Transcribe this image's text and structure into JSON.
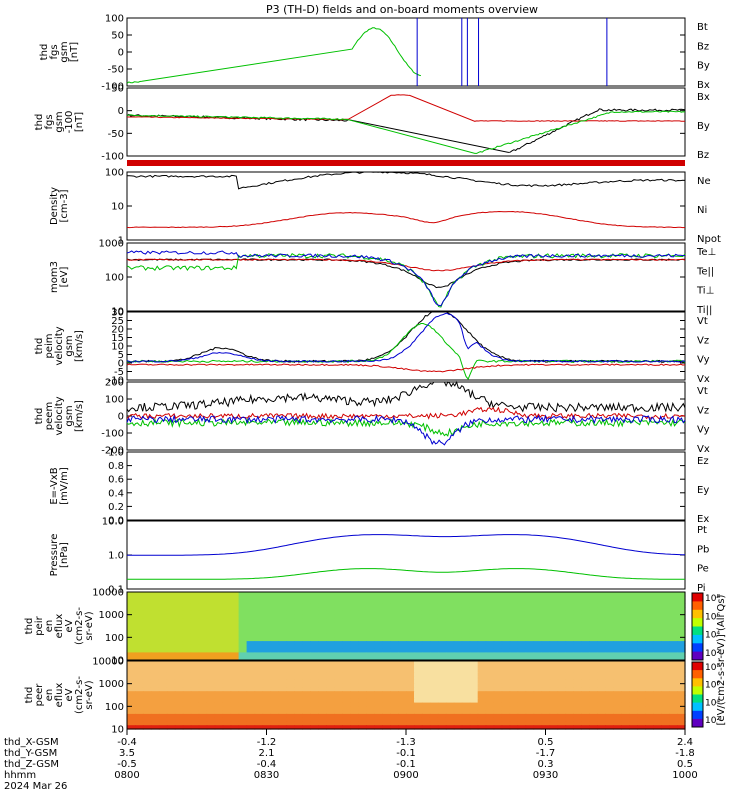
{
  "title": "P3 (TH-D) fields and on-board moments overview",
  "colors": {
    "black": "#000000",
    "red": "#d00000",
    "green": "#00c000",
    "blue": "#0000d0"
  },
  "chart_data": [
    {
      "type": "line",
      "ylabel": [
        "thd",
        "fgs",
        "gsm",
        "[nT]"
      ],
      "yticks": [
        "100",
        "50",
        "0",
        "-50",
        "-100"
      ],
      "ylim": [
        -100,
        100
      ],
      "legend": [
        {
          "name": "Bt",
          "color": "black"
        },
        {
          "name": "Bz",
          "color": "red"
        },
        {
          "name": "By",
          "color": "green"
        },
        {
          "name": "Bx",
          "color": "blue"
        }
      ]
    },
    {
      "type": "line",
      "ylabel": [
        "thd",
        "fgs",
        "gsm",
        "-100",
        "[nT]"
      ],
      "yticks": [
        "50",
        "0",
        "-50",
        "-100"
      ],
      "ylim": [
        -125,
        75
      ],
      "legend": [
        {
          "name": "Bx",
          "color": "black"
        },
        {
          "name": "By",
          "color": "green"
        },
        {
          "name": "Bz",
          "color": "red"
        }
      ]
    },
    {
      "type": "line",
      "scale": "log",
      "ylabel": [
        "Density",
        "[cm-3]"
      ],
      "yticks": [
        "100",
        "10",
        "1"
      ],
      "ylim": [
        0.7,
        110
      ],
      "legend": [
        {
          "name": "Ne",
          "color": "red"
        },
        {
          "name": "Ni",
          "color": "black"
        },
        {
          "name": "Npot",
          "color": "blue"
        }
      ]
    },
    {
      "type": "line",
      "scale": "log",
      "ylabel": [
        "mom3",
        "[eV]"
      ],
      "yticks": [
        "1000",
        "100",
        "10"
      ],
      "ylim": [
        7,
        2000
      ],
      "legend": [
        {
          "name": "Te⊥",
          "color": "red"
        },
        {
          "name": "Te||",
          "color": "black"
        },
        {
          "name": "Ti⊥",
          "color": "blue"
        },
        {
          "name": "Ti||",
          "color": "green"
        }
      ]
    },
    {
      "type": "line",
      "ylabel": [
        "thd",
        "peim",
        "velocity",
        "gsm",
        "[km/s]"
      ],
      "yticks": [
        "30",
        "25",
        "20",
        "15",
        "10",
        "5",
        "0",
        "-5",
        "-10"
      ],
      "ylim": [
        -10,
        30
      ],
      "legend": [
        {
          "name": "Vt",
          "color": "black"
        },
        {
          "name": "Vz",
          "color": "red"
        },
        {
          "name": "Vy",
          "color": "green"
        },
        {
          "name": "Vx",
          "color": "blue"
        }
      ]
    },
    {
      "type": "line",
      "ylabel": [
        "thd",
        "peem",
        "velocity",
        "gsm",
        "[km/s]"
      ],
      "yticks": [
        "200",
        "100",
        "0",
        "-100",
        "-200"
      ],
      "ylim": [
        -200,
        200
      ],
      "legend": [
        {
          "name": "Vt",
          "color": "black"
        },
        {
          "name": "Vz",
          "color": "red"
        },
        {
          "name": "Vy",
          "color": "green"
        },
        {
          "name": "Vx",
          "color": "blue"
        }
      ]
    },
    {
      "type": "line",
      "ylabel": [
        "E=-VxB",
        "[mV/m]"
      ],
      "yticks": [
        "1.0",
        "0.8",
        "0.6",
        "0.4",
        "0.2",
        "0.0"
      ],
      "ylim": [
        0,
        1
      ],
      "legend": [
        {
          "name": "Ez",
          "color": "red"
        },
        {
          "name": "Ey",
          "color": "green"
        },
        {
          "name": "Ex",
          "color": "blue"
        }
      ]
    },
    {
      "type": "line",
      "scale": "log",
      "ylabel": [
        "Pressure",
        "[nPa]"
      ],
      "yticks": [
        "10.0",
        "1.0",
        "0.1"
      ],
      "ylim": [
        0.07,
        15
      ],
      "legend": [
        {
          "name": "Pt",
          "color": "black"
        },
        {
          "name": "Pb",
          "color": "red"
        },
        {
          "name": "Pe",
          "color": "green"
        },
        {
          "name": "Pi",
          "color": "blue"
        }
      ]
    },
    {
      "type": "heatmap",
      "ylabel": [
        "thd",
        "peir",
        "en",
        "eflux",
        "eV",
        "(cm2-s-",
        "sr-eV)"
      ],
      "yticks": [
        "10000",
        "1000",
        "100",
        "10"
      ],
      "ylim": [
        7,
        20000
      ]
    },
    {
      "type": "heatmap",
      "ylabel": [
        "thd",
        "peer",
        "en",
        "eflux",
        "eV",
        "(cm2-s-",
        "sr-eV)"
      ],
      "yticks": [
        "10000",
        "1000",
        "100",
        "10"
      ],
      "ylim": [
        7,
        20000
      ]
    }
  ],
  "colorbar": {
    "label": "[eV/(cm2-s-sr-eV)] (All Qs)",
    "upper_ticks": [
      "10⁸",
      "10⁶",
      "10⁴",
      "10²"
    ],
    "lower_ticks": [
      "10⁸",
      "10⁶",
      "10⁴",
      "10²"
    ]
  },
  "x_axis": {
    "row_labels": [
      "thd_X-GSM",
      "thd_Y-GSM",
      "thd_Z-GSM",
      "hhmm",
      "2024 Mar 26"
    ],
    "ticks": [
      {
        "x": "-0.4",
        "y": "3.5",
        "z": "-0.5",
        "hhmm": "0800"
      },
      {
        "x": "-1.2",
        "y": "2.1",
        "z": "-0.4",
        "hhmm": "0830"
      },
      {
        "x": "-1.3",
        "y": "-0.1",
        "z": "-0.1",
        "hhmm": "0900"
      },
      {
        "x": "0.5",
        "y": "-1.7",
        "z": "0.3",
        "hhmm": "0930"
      },
      {
        "x": "2.4",
        "y": "-1.8",
        "z": "0.5",
        "hhmm": "1000"
      }
    ]
  }
}
